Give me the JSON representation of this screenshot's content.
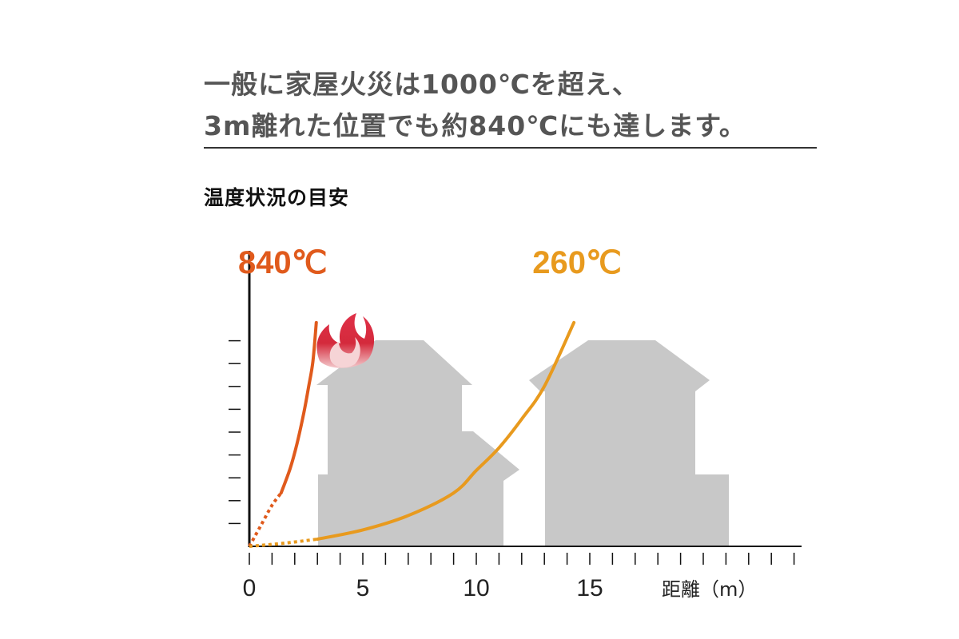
{
  "header": {
    "line1": "一般に家屋火災は1000℃を超え、",
    "line2": "3m離れた位置でも約840℃にも達します。"
  },
  "subtitle": "温度状況の目安",
  "chart_data": {
    "type": "line",
    "title": "温度状況の目安",
    "xlabel": "距離（m）",
    "ylabel": "",
    "x_ticks": [
      0,
      5,
      10,
      15
    ],
    "x_tick_labels": [
      "0",
      "5",
      "10",
      "15"
    ],
    "xlim": [
      0,
      24.5
    ],
    "y_minor_tick_count": 9,
    "series": [
      {
        "name": "840℃",
        "color": "#e05a1c",
        "x": [
          0.0,
          0.5,
          1.0,
          1.4,
          1.8,
          2.1,
          2.4,
          2.6,
          2.8,
          2.95
        ],
        "y": [
          0.0,
          1.0,
          2.0,
          2.6,
          3.8,
          5.0,
          6.5,
          7.7,
          9.0,
          10.9
        ],
        "dotted_until_x": 1.4
      },
      {
        "name": "260℃",
        "color": "#e89a1e",
        "x": [
          0.0,
          1.5,
          3.0,
          5.0,
          7.0,
          9.0,
          10.0,
          11.0,
          12.0,
          13.0,
          14.3
        ],
        "y": [
          0.0,
          0.15,
          0.35,
          0.8,
          1.5,
          2.6,
          3.7,
          4.8,
          6.2,
          7.8,
          10.9
        ],
        "dotted_until_x": 3.0
      }
    ],
    "colors": {
      "axis": "#111111",
      "house": "#c8c8c8",
      "flame": "#d42a3c"
    },
    "icons": [
      "house-icon",
      "flame-icon"
    ],
    "grid": false
  }
}
